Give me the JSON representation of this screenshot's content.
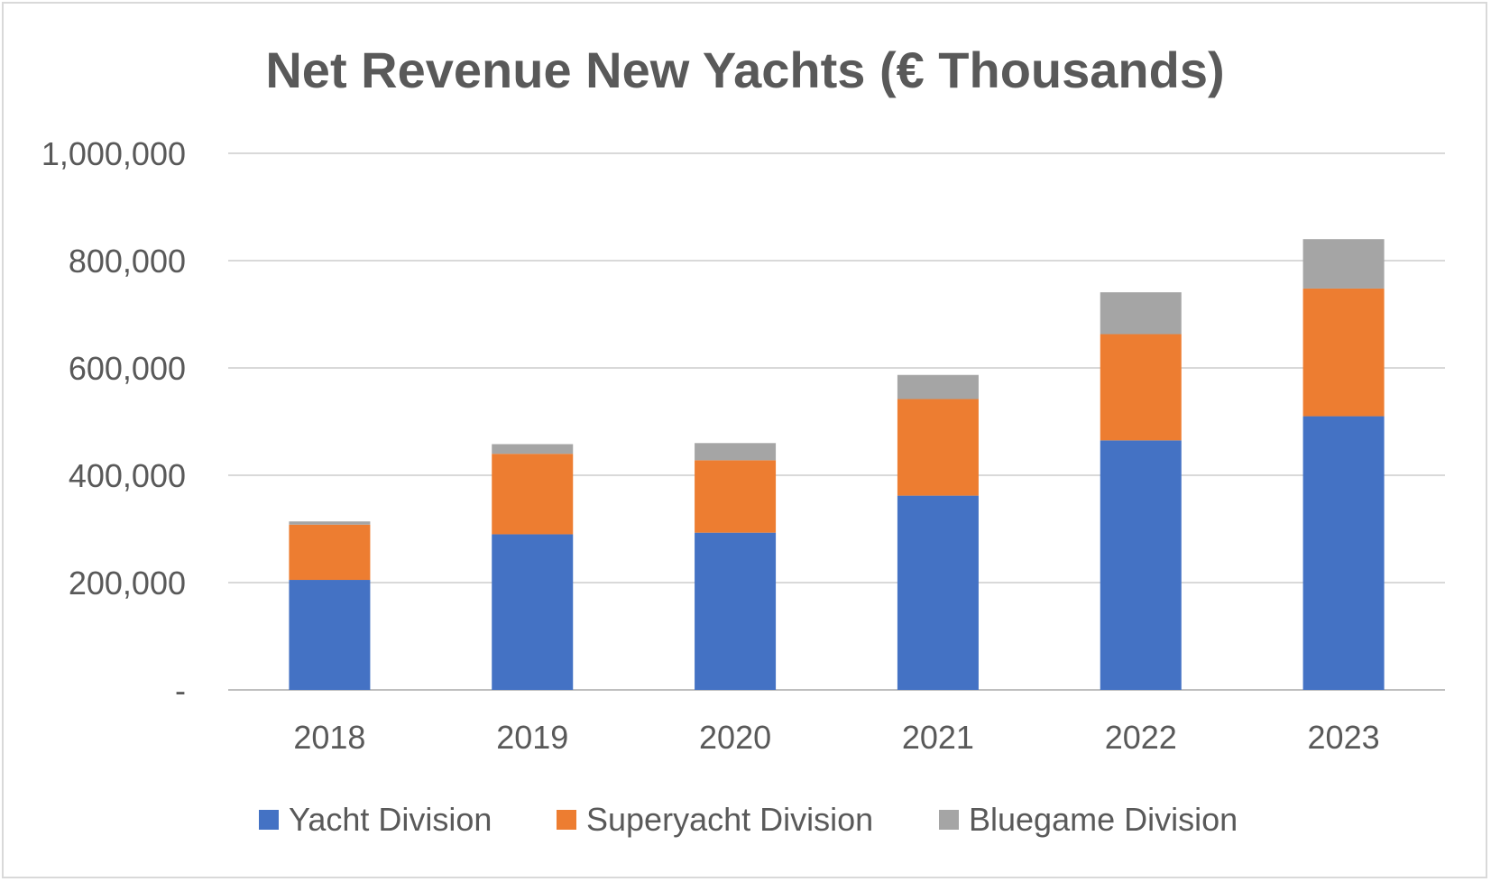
{
  "chart_data": {
    "type": "bar",
    "stacked": true,
    "title": "Net Revenue New Yachts (€ Thousands)",
    "xlabel": "",
    "ylabel": "",
    "categories": [
      "2018",
      "2019",
      "2020",
      "2021",
      "2022",
      "2023"
    ],
    "ylim": [
      0,
      1000000
    ],
    "yticks": [
      0,
      200000,
      400000,
      600000,
      800000,
      1000000
    ],
    "ytick_labels": [
      "-",
      "200,000",
      "400,000",
      "600,000",
      "800,000",
      "1,000,000"
    ],
    "grid": true,
    "legend_position": "bottom",
    "series": [
      {
        "name": "Yacht Division",
        "color": "#4472c4",
        "values": [
          205000,
          290000,
          293000,
          362000,
          465000,
          510000
        ]
      },
      {
        "name": "Superyacht Division",
        "color": "#ed7d31",
        "values": [
          103000,
          150000,
          135000,
          180000,
          198000,
          238000
        ]
      },
      {
        "name": "Bluegame Division",
        "color": "#a5a5a5",
        "values": [
          6000,
          18000,
          32000,
          45000,
          78000,
          92000
        ]
      }
    ]
  }
}
